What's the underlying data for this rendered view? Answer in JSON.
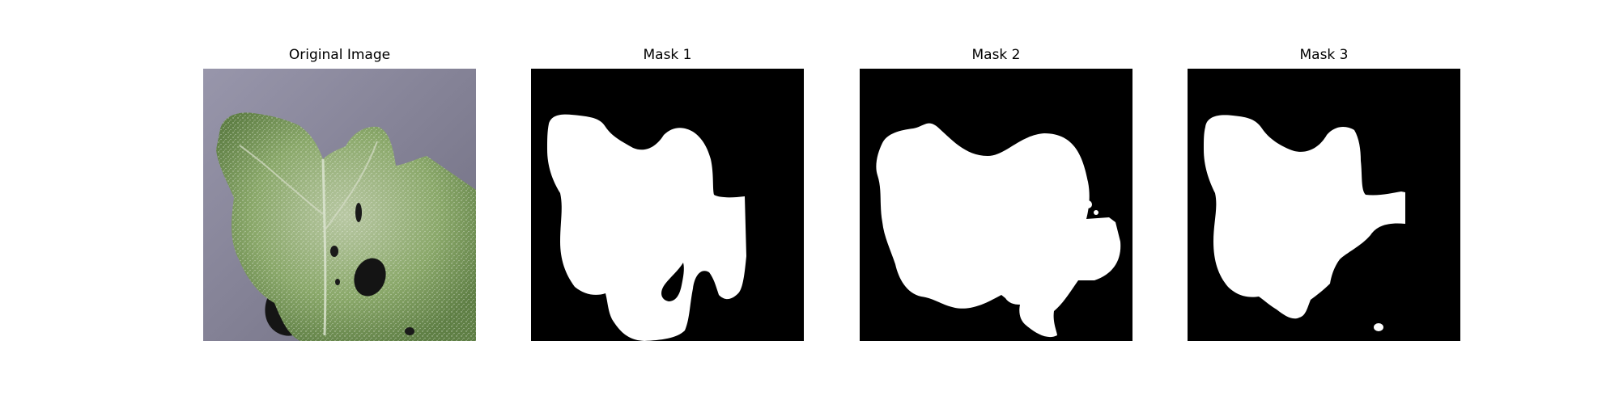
{
  "figure": {
    "panels": [
      {
        "title": "Original Image"
      },
      {
        "title": "Mask 1"
      },
      {
        "title": "Mask 2"
      },
      {
        "title": "Mask 3"
      }
    ]
  },
  "colors": {
    "figure_background": "#ffffff",
    "mask_background": "#000000",
    "mask_foreground": "#ffffff",
    "photo_background": "#8c8aa0",
    "leaf_green": "#8aa86a",
    "leaf_dark": "#5f7f45",
    "shadow": "#1a1a1a"
  }
}
